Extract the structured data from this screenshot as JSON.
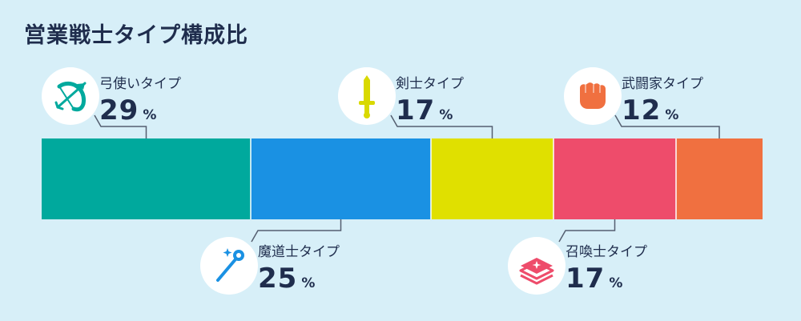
{
  "title": "営業戦士タイプ構成比",
  "chart_data": {
    "type": "bar",
    "orientation": "horizontal-stacked-100",
    "title": "営業戦士タイプ構成比",
    "unit": "%",
    "categories": [
      "弓使いタイプ",
      "魔道士タイプ",
      "剣士タイプ",
      "召喚士タイプ",
      "武闘家タイプ"
    ],
    "values": [
      29,
      25,
      17,
      17,
      12
    ],
    "colors": [
      "#00a99d",
      "#1a91e3",
      "#e0e000",
      "#ee4c6b",
      "#f07040"
    ],
    "icons": [
      "bow-arrow-icon",
      "magic-wand-icon",
      "sword-icon",
      "summon-book-icon",
      "fist-icon"
    ],
    "label_side": [
      "top",
      "bottom",
      "top",
      "bottom",
      "top"
    ]
  },
  "labels": [
    {
      "name": "弓使いタイプ",
      "value": "29",
      "unit": "%"
    },
    {
      "name": "魔道士タイプ",
      "value": "25",
      "unit": "%"
    },
    {
      "name": "剣士タイプ",
      "value": "17",
      "unit": "%"
    },
    {
      "name": "召喚士タイプ",
      "value": "17",
      "unit": "%"
    },
    {
      "name": "武闘家タイプ",
      "value": "12",
      "unit": "%"
    }
  ]
}
